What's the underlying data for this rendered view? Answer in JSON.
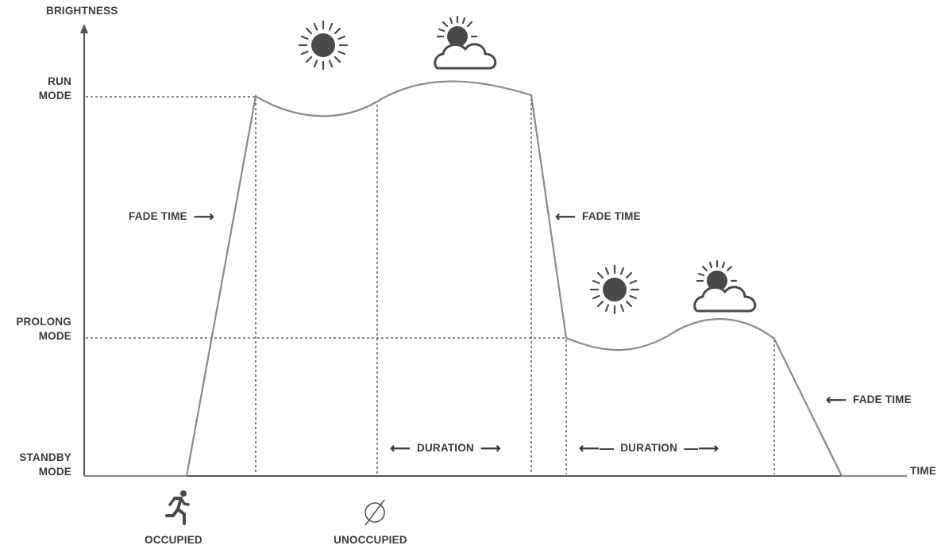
{
  "axis": {
    "y_label": "BRIGHTNESS",
    "x_label": "TIME",
    "levels": {
      "run": [
        "RUN",
        "MODE"
      ],
      "prolong": [
        "PROLONG",
        "MODE"
      ],
      "standby": [
        "STANDBY",
        "MODE"
      ]
    }
  },
  "annotations": {
    "fade_time_1": "FADE TIME",
    "fade_time_2": "FADE TIME",
    "fade_time_3": "FADE TIME",
    "duration_1": "DURATION",
    "duration_2": "DURATION"
  },
  "events": {
    "occupied": "OCCUPIED",
    "unoccupied": "UNOCCUPIED"
  },
  "icons": [
    "sun-icon",
    "sun-behind-cloud-icon",
    "running-person-icon",
    "empty-set-icon"
  ],
  "colors": {
    "line": "#8a8a8a",
    "axis": "#555555",
    "icon": "#4a4a4a",
    "text": "#3a3a3a"
  }
}
